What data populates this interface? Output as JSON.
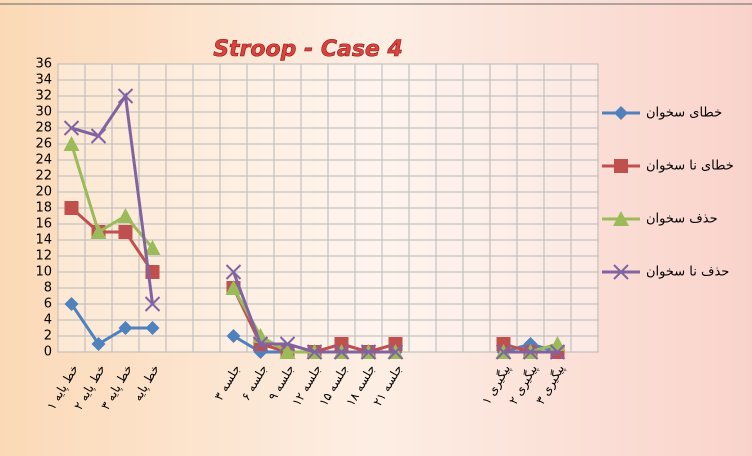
{
  "chart_data": {
    "type": "line",
    "title": "Stroop - Case 4",
    "categories": [
      "خط پایه ۱",
      "خط پایه ۲",
      "خط پایه ۳",
      "خط پایه",
      null,
      null,
      "جلسه ۳",
      "جلسه ۶",
      "جلسه ۹",
      "جلسه ۱۲",
      "جلسه ۱۵",
      "جلسه ۱۸",
      "جلسه ۲۱",
      null,
      null,
      null,
      "پیگیری ۱",
      "پیگیری ۲",
      "پیگیری ۳",
      null
    ],
    "series": [
      {
        "name": "خطای سخوان",
        "color": "#4f81bd",
        "marker": "diamond",
        "values": [
          6,
          1,
          3,
          3,
          null,
          null,
          2,
          0,
          0,
          0,
          0,
          0,
          0,
          null,
          null,
          null,
          0,
          1,
          0,
          null
        ]
      },
      {
        "name": "خطای نا سخوان",
        "color": "#c0504d",
        "marker": "square",
        "values": [
          18,
          15,
          15,
          10,
          null,
          null,
          8,
          1,
          0,
          0,
          1,
          0,
          1,
          null,
          null,
          null,
          1,
          0,
          0,
          null
        ]
      },
      {
        "name": "حذف سخوان",
        "color": "#9bbb59",
        "marker": "triangle",
        "values": [
          26,
          15,
          17,
          13,
          null,
          null,
          8,
          2,
          0,
          0,
          0,
          0,
          0,
          null,
          null,
          null,
          0,
          0,
          1,
          null
        ]
      },
      {
        "name": "حذف نا سخوان",
        "color": "#8064a2",
        "marker": "x",
        "values": [
          28,
          27,
          32,
          6,
          null,
          null,
          10,
          1,
          1,
          0,
          0,
          0,
          0,
          null,
          null,
          null,
          0,
          0,
          0,
          null
        ]
      }
    ],
    "ylim": [
      0,
      36
    ],
    "yticks": [
      0,
      2,
      4,
      6,
      8,
      10,
      12,
      14,
      16,
      18,
      20,
      22,
      24,
      26,
      28,
      30,
      32,
      34,
      36
    ],
    "grid": true,
    "legend": "right"
  }
}
